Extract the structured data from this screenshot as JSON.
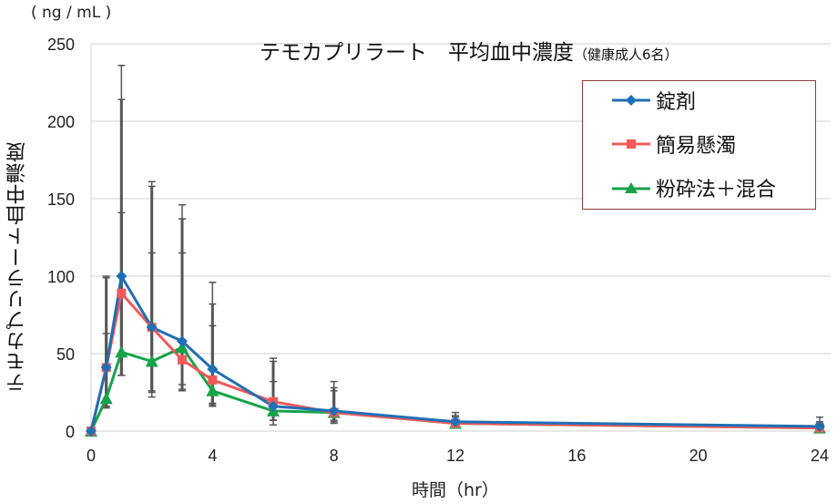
{
  "chart_data": {
    "type": "line",
    "title": "テモカプリラート 平均血中濃度",
    "subtitle": "（健康成人6名）",
    "xlabel": "時間（hr）",
    "ylabel": "テモカプリラート血中濃度",
    "y_unit": "( ng / mL )",
    "xlim": [
      0,
      24
    ],
    "ylim": [
      0,
      250
    ],
    "x_ticks": [
      0,
      4,
      8,
      12,
      16,
      20,
      24
    ],
    "y_ticks": [
      0,
      50,
      100,
      150,
      200,
      250
    ],
    "grid": "horizontal",
    "legend_position": "upper right",
    "x": [
      0,
      0.5,
      1,
      2,
      3,
      4,
      6,
      8,
      12,
      24
    ],
    "series": [
      {
        "name": "錠剤",
        "color": "#1f6fb4",
        "marker": "diamond",
        "values": [
          0,
          41,
          100,
          67,
          58,
          40,
          16,
          13,
          6,
          3
        ],
        "error_upper": [
          0,
          100,
          236,
          161,
          146,
          96,
          47,
          32,
          12,
          9
        ]
      },
      {
        "name": "簡易懸濁",
        "color": "#f05a5a",
        "marker": "square",
        "values": [
          0,
          41,
          89,
          67,
          46,
          33,
          19,
          12,
          5,
          2
        ],
        "error_upper": [
          0,
          99,
          214,
          158,
          137,
          82,
          45,
          28,
          10,
          6
        ]
      },
      {
        "name": "粉砕法＋混合",
        "color": "#17a34a",
        "marker": "triangle",
        "values": [
          0,
          21,
          51,
          45,
          54,
          26,
          13,
          12,
          5,
          2
        ],
        "error_upper": [
          0,
          63,
          141,
          115,
          115,
          68,
          32,
          26,
          9,
          5
        ]
      }
    ],
    "error_lower": [
      [
        0,
        15,
        36,
        22,
        27,
        17,
        4,
        5,
        2,
        1
      ],
      [
        0,
        16,
        36,
        25,
        26,
        16,
        7,
        6,
        3,
        1
      ],
      [
        0,
        15,
        36,
        26,
        30,
        18,
        7,
        7,
        3,
        1
      ]
    ]
  },
  "legend": {
    "items": [
      {
        "label": "錠剤"
      },
      {
        "label": "簡易懸濁"
      },
      {
        "label": "粉砕法＋混合"
      }
    ]
  },
  "labels": {
    "unit": "( ng / mL )",
    "title_main": "テモカプリラート　平均血中濃度",
    "title_sub": "（健康成人6名）",
    "xlabel": "時間（hr）",
    "ylabel": "テモカプリラート血中濃度"
  }
}
